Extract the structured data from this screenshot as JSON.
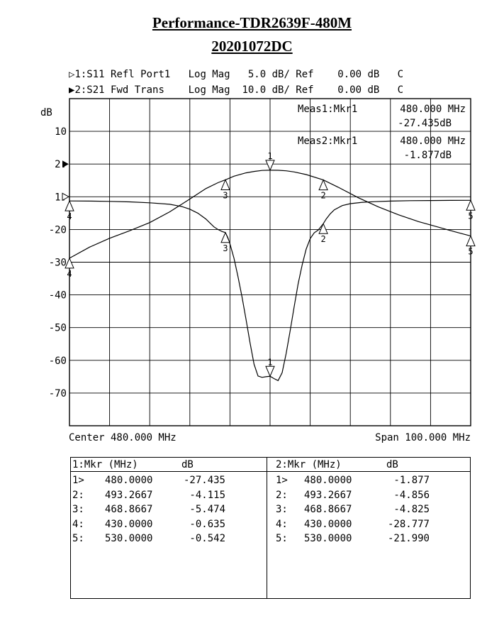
{
  "header": {
    "title": "Performance-TDR2639F-480M",
    "subtitle": "20201072DC"
  },
  "channels": [
    {
      "marker": "▷",
      "text": "1:S11 Refl Port1   Log Mag   5.0 dB/ Ref    0.00 dB   C"
    },
    {
      "marker": "▶",
      "text": "2:S21 Fwd Trans    Log Mag  10.0 dB/ Ref    0.00 dB   C"
    }
  ],
  "chart_data": {
    "type": "line",
    "ylabel": "dB",
    "y_tick_labels": [
      "10",
      "2:",
      "1:",
      "-20",
      "-30",
      "-40",
      "-50",
      "-60",
      "-70"
    ],
    "xlim": [
      430,
      530
    ],
    "grid": true,
    "center_label": "Center 480.000 MHz",
    "span_label": "Span 100.000 MHz",
    "meas": [
      {
        "label": "Meas1:Mkr1",
        "freq": "480.000 MHz",
        "value": "-27.435dB"
      },
      {
        "label": "Meas2:Mkr1",
        "freq": "480.000 MHz",
        "value": "-1.877dB"
      }
    ],
    "series": [
      {
        "name": "S11",
        "x": [
          430,
          435,
          440,
          445,
          450,
          455,
          458,
          460,
          462,
          464,
          465,
          466,
          467,
          468,
          468.8667,
          469.5,
          470,
          471,
          472,
          473,
          474,
          475,
          476,
          477,
          478,
          479,
          480,
          481,
          482,
          483,
          484,
          485,
          486,
          487,
          488,
          489,
          490,
          491,
          492,
          493.2667,
          494,
          495,
          496,
          498,
          500,
          503,
          506,
          510,
          515,
          520,
          525,
          530
        ],
        "values": [
          -0.635,
          -0.66,
          -0.7,
          -0.78,
          -0.92,
          -1.15,
          -1.5,
          -1.9,
          -2.5,
          -3.4,
          -4.0,
          -4.6,
          -5.0,
          -5.3,
          -5.474,
          -6.3,
          -7.2,
          -9.4,
          -12.2,
          -15.3,
          -18.7,
          -22.3,
          -25.6,
          -27.4,
          -27.6,
          -27.5,
          -27.435,
          -27.8,
          -28.1,
          -26.9,
          -24.0,
          -20.5,
          -16.8,
          -13.3,
          -10.4,
          -8.0,
          -6.4,
          -5.5,
          -5.1,
          -4.115,
          -3.4,
          -2.6,
          -2.0,
          -1.35,
          -1.05,
          -0.85,
          -0.75,
          -0.66,
          -0.6,
          -0.57,
          -0.55,
          -0.542
        ]
      },
      {
        "name": "S21",
        "x": [
          430,
          435,
          440,
          445,
          450,
          455,
          460,
          464,
          467,
          468.8667,
          471,
          474,
          476,
          478,
          480,
          482,
          484,
          486,
          489,
          493.2667,
          497,
          502,
          507,
          512,
          517,
          522,
          526,
          530
        ],
        "values": [
          -28.777,
          -25.4,
          -22.7,
          -20.4,
          -17.9,
          -14.6,
          -10.7,
          -7.5,
          -5.7,
          -4.825,
          -3.7,
          -2.7,
          -2.25,
          -1.95,
          -1.877,
          -1.9,
          -2.05,
          -2.4,
          -3.2,
          -4.856,
          -7.1,
          -10.3,
          -13.1,
          -15.5,
          -17.6,
          -19.3,
          -20.7,
          -21.99
        ]
      }
    ],
    "markers": [
      {
        "id": "1",
        "series": "S11",
        "x": 480,
        "y": -27.435,
        "dir": "down",
        "label_pos": "above"
      },
      {
        "id": "2",
        "series": "S11",
        "x": 493.2667,
        "y": -4.115,
        "dir": "up",
        "label_pos": "below"
      },
      {
        "id": "3",
        "series": "S11",
        "x": 468.8667,
        "y": -5.474,
        "dir": "up",
        "label_pos": "below"
      },
      {
        "id": "4",
        "series": "S11",
        "x": 430,
        "y": -0.635,
        "dir": "up",
        "label_pos": "below"
      },
      {
        "id": "5",
        "series": "S11",
        "x": 530,
        "y": -0.542,
        "dir": "up",
        "label_pos": "below"
      },
      {
        "id": "1",
        "series": "S21",
        "x": 480,
        "y": -1.877,
        "dir": "down",
        "label_pos": "above"
      },
      {
        "id": "2",
        "series": "S21",
        "x": 493.2667,
        "y": -4.856,
        "dir": "up",
        "label_pos": "below"
      },
      {
        "id": "3",
        "series": "S21",
        "x": 468.8667,
        "y": -4.825,
        "dir": "up",
        "label_pos": "below"
      },
      {
        "id": "4",
        "series": "S21",
        "x": 430,
        "y": -28.777,
        "dir": "up",
        "label_pos": "below"
      },
      {
        "id": "5",
        "series": "S21",
        "x": 530,
        "y": -21.99,
        "dir": "up",
        "label_pos": "below"
      }
    ]
  },
  "marker_table": {
    "left": {
      "header_mkr": "1:Mkr (MHz)",
      "header_db": "dB",
      "rows": [
        {
          "mkr": "1>",
          "freq": "480.0000",
          "db": "-27.435"
        },
        {
          "mkr": "2:",
          "freq": "493.2667",
          "db": "-4.115"
        },
        {
          "mkr": "3:",
          "freq": "468.8667",
          "db": "-5.474"
        },
        {
          "mkr": "4:",
          "freq": "430.0000",
          "db": "-0.635"
        },
        {
          "mkr": "5:",
          "freq": "530.0000",
          "db": "-0.542"
        }
      ]
    },
    "right": {
      "header_mkr": "2:Mkr (MHz)",
      "header_db": "dB",
      "rows": [
        {
          "mkr": "1>",
          "freq": "480.0000",
          "db": "-1.877"
        },
        {
          "mkr": "2:",
          "freq": "493.2667",
          "db": "-4.856"
        },
        {
          "mkr": "3:",
          "freq": "468.8667",
          "db": "-4.825"
        },
        {
          "mkr": "4:",
          "freq": "430.0000",
          "db": "-28.777"
        },
        {
          "mkr": "5:",
          "freq": "530.0000",
          "db": "-21.990"
        }
      ]
    }
  }
}
